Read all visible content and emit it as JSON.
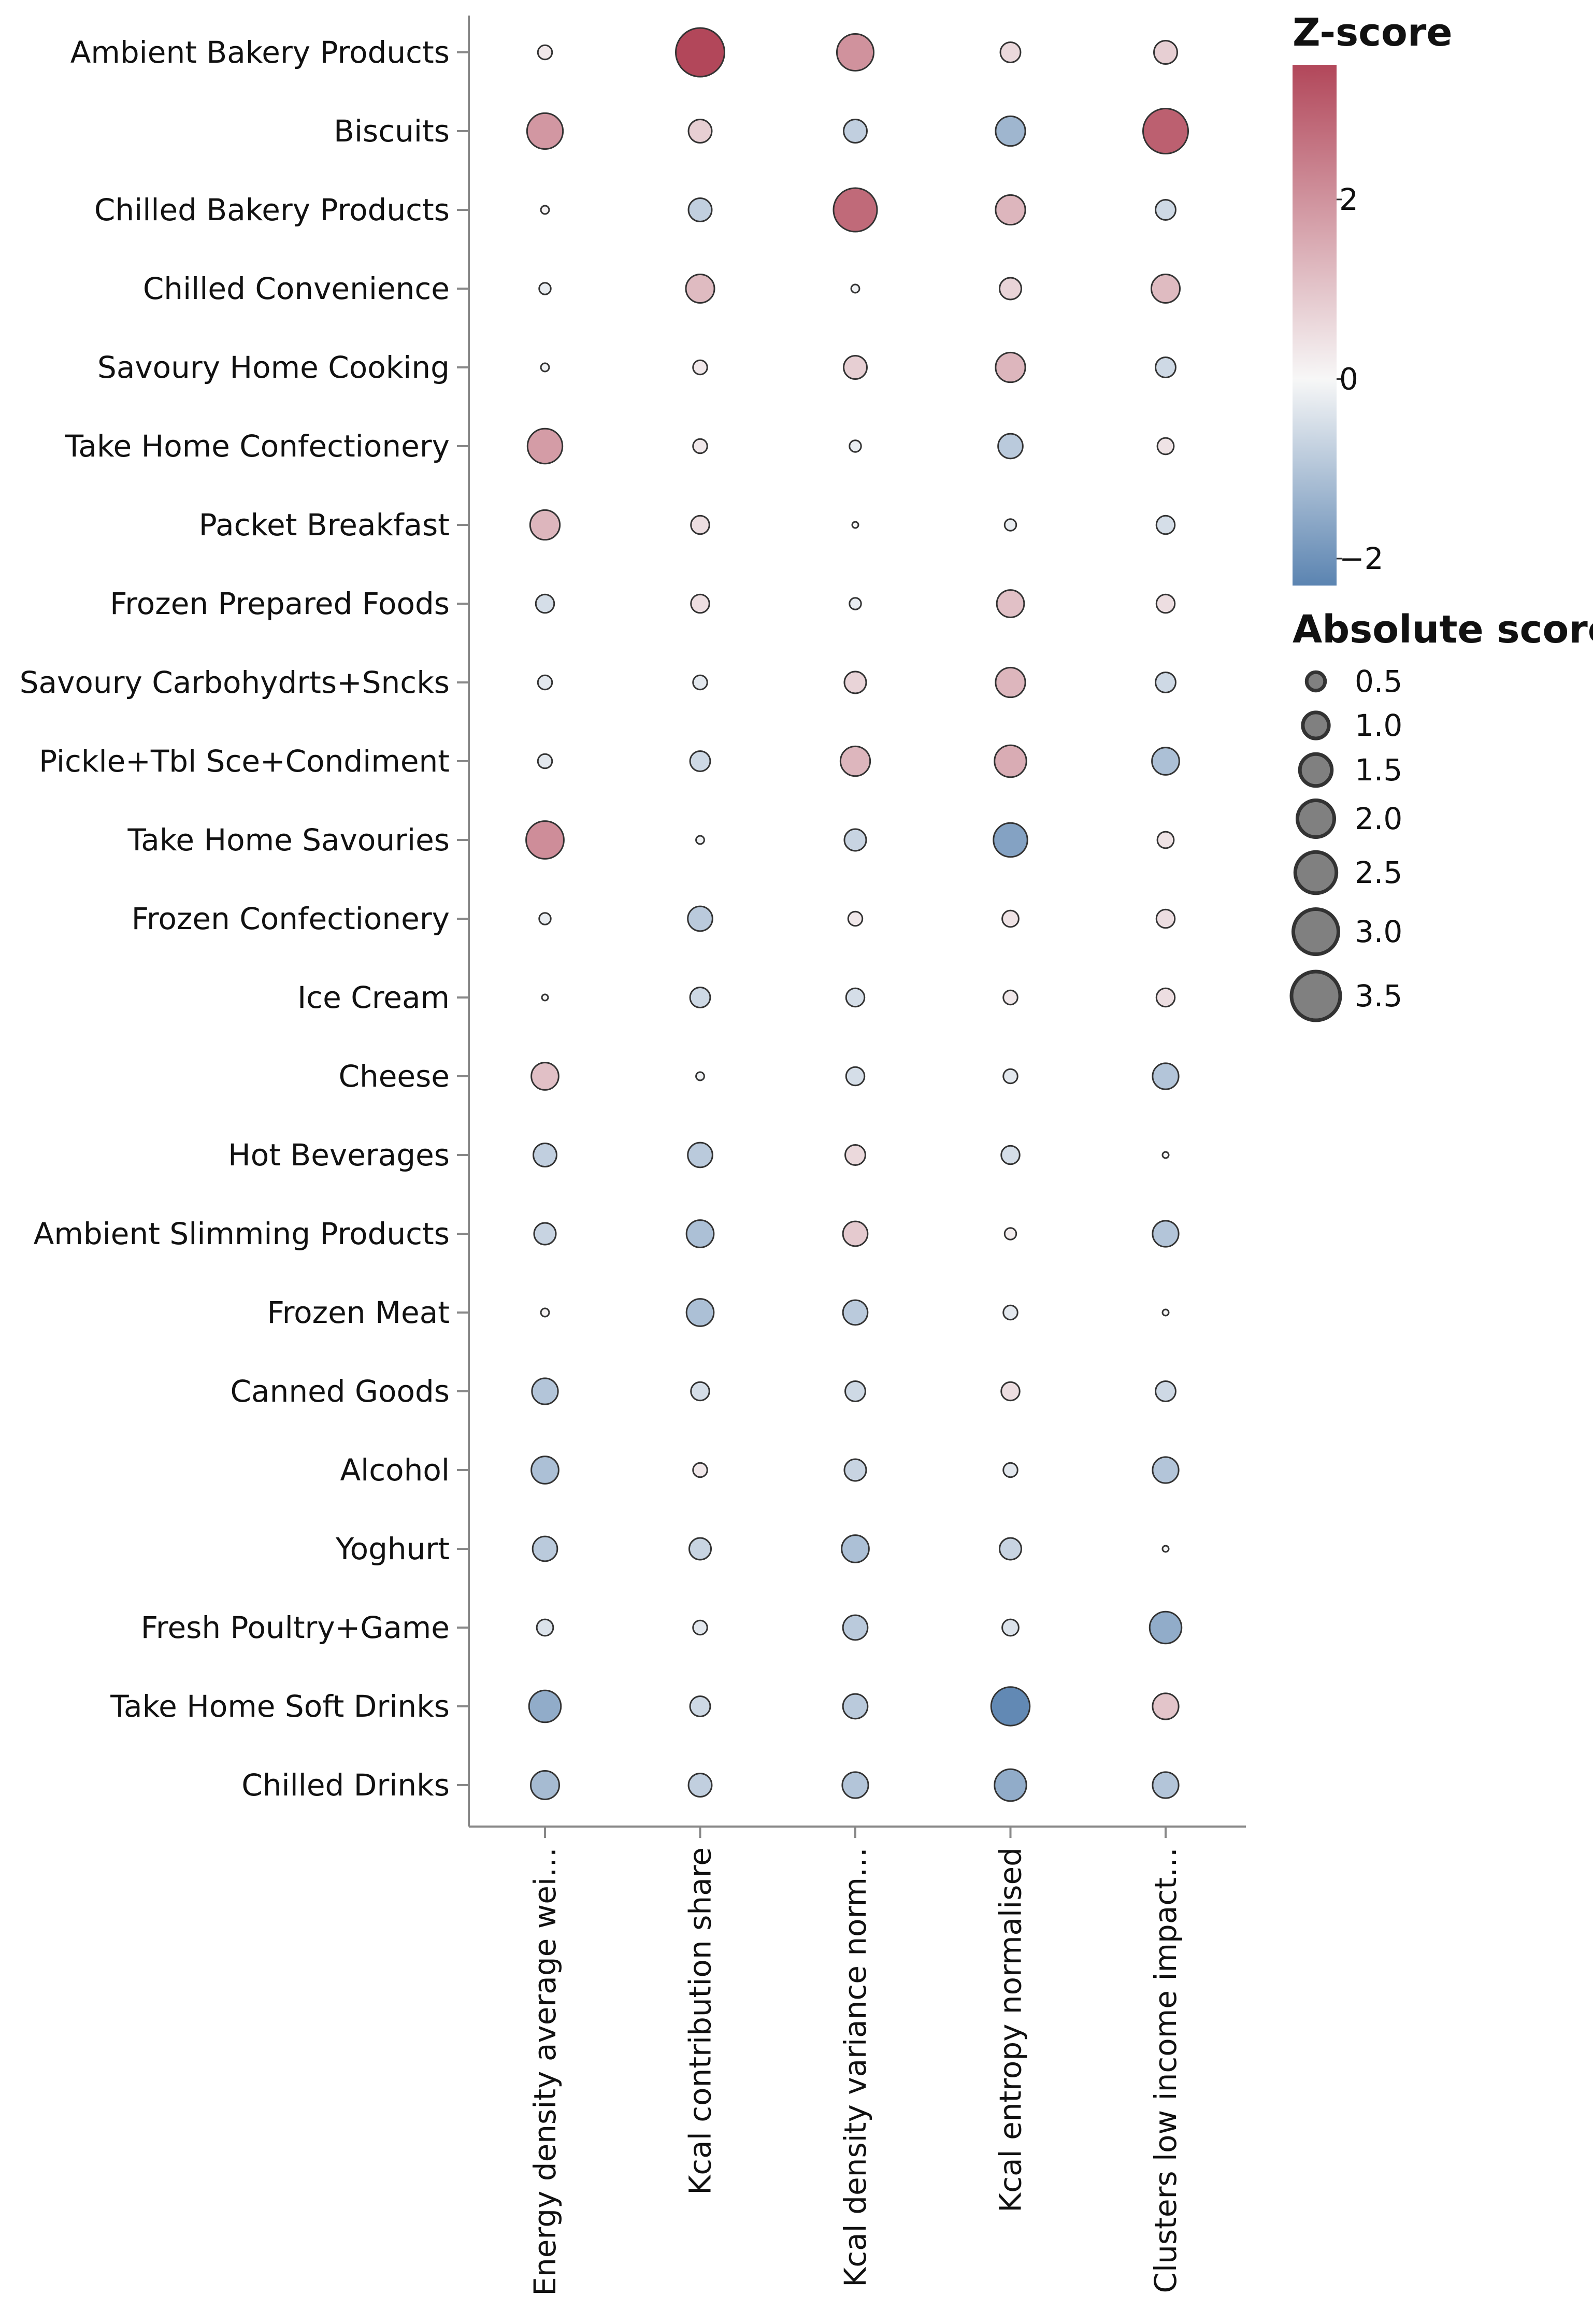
{
  "chart_data": {
    "type": "scatter",
    "encoding": "bubble matrix: color = z-score (diverging red-blue), size = absolute score",
    "rows": [
      "Ambient Bakery Products",
      "Biscuits",
      "Chilled Bakery Products",
      "Chilled Convenience",
      "Savoury Home Cooking",
      "Take Home Confectionery",
      "Packet Breakfast",
      "Frozen Prepared Foods",
      "Savoury Carbohydrts+Sncks",
      "Pickle+Tbl Sce+Condiment",
      "Take Home Savouries",
      "Frozen Confectionery",
      "Ice Cream",
      "Cheese",
      "Hot Beverages",
      "Ambient Slimming Products",
      "Frozen Meat",
      "Canned Goods",
      "Alcohol",
      "Yoghurt",
      "Fresh Poultry+Game",
      "Take Home Soft Drinks",
      "Chilled Drinks"
    ],
    "columns": [
      "Energy density average wei…",
      "Kcal contribution share",
      "Kcal density variance norm…",
      "Kcal entropy normalised",
      "Clusters low income impact…"
    ],
    "z_scores": [
      [
        0.3,
        3.5,
        2.0,
        0.6,
        0.8
      ],
      [
        1.9,
        0.8,
        -0.8,
        -1.3,
        3.0
      ],
      [
        0.1,
        -0.8,
        2.8,
        1.3,
        -0.6
      ],
      [
        -0.2,
        1.2,
        -0.1,
        0.7,
        1.2
      ],
      [
        -0.1,
        0.3,
        0.8,
        1.3,
        -0.6
      ],
      [
        1.8,
        0.3,
        -0.2,
        -0.9,
        0.4
      ],
      [
        1.3,
        0.5,
        0.0,
        -0.2,
        -0.5
      ],
      [
        -0.5,
        0.5,
        -0.2,
        1.1,
        0.5
      ],
      [
        -0.3,
        -0.3,
        0.7,
        1.3,
        -0.6
      ],
      [
        -0.3,
        -0.6,
        1.3,
        1.5,
        -1.1
      ],
      [
        2.1,
        -0.1,
        -0.7,
        -1.7,
        0.4
      ],
      [
        -0.2,
        -0.9,
        0.3,
        0.4,
        0.5
      ],
      [
        0.0,
        -0.6,
        -0.5,
        0.3,
        0.5
      ],
      [
        1.1,
        -0.1,
        -0.5,
        -0.3,
        -1.0
      ],
      [
        -0.8,
        -0.9,
        0.6,
        -0.5,
        0.0
      ],
      [
        -0.7,
        -1.1,
        0.9,
        0.2,
        -1.0
      ],
      [
        0.1,
        -1.1,
        -0.9,
        -0.3,
        0.0
      ],
      [
        -1.0,
        -0.5,
        -0.6,
        0.5,
        -0.6
      ],
      [
        -1.1,
        0.3,
        -0.7,
        -0.3,
        -1.0
      ],
      [
        -0.9,
        -0.7,
        -1.1,
        -0.7,
        0.0
      ],
      [
        -0.4,
        -0.3,
        -0.9,
        -0.4,
        -1.5
      ],
      [
        -1.5,
        -0.6,
        -0.9,
        -2.2,
        1.0
      ],
      [
        -1.2,
        -0.8,
        -1.0,
        -1.5,
        -1.0
      ]
    ],
    "absolute_scores": [
      [
        0.3,
        3.5,
        2.0,
        0.6,
        0.8
      ],
      [
        1.9,
        0.8,
        0.8,
        1.3,
        3.0
      ],
      [
        0.1,
        0.8,
        2.8,
        1.3,
        0.6
      ],
      [
        0.2,
        1.2,
        0.1,
        0.7,
        1.2
      ],
      [
        0.1,
        0.3,
        0.8,
        1.3,
        0.6
      ],
      [
        1.8,
        0.3,
        0.2,
        0.9,
        0.4
      ],
      [
        1.3,
        0.5,
        0.05,
        0.2,
        0.5
      ],
      [
        0.5,
        0.5,
        0.2,
        1.1,
        0.5
      ],
      [
        0.3,
        0.3,
        0.7,
        1.3,
        0.6
      ],
      [
        0.3,
        0.6,
        1.3,
        1.5,
        1.1
      ],
      [
        2.1,
        0.1,
        0.7,
        1.7,
        0.4
      ],
      [
        0.2,
        0.9,
        0.3,
        0.4,
        0.5
      ],
      [
        0.05,
        0.6,
        0.5,
        0.3,
        0.5
      ],
      [
        1.1,
        0.1,
        0.5,
        0.3,
        1.0
      ],
      [
        0.8,
        0.9,
        0.6,
        0.5,
        0.02
      ],
      [
        0.7,
        1.1,
        0.9,
        0.2,
        1.0
      ],
      [
        0.1,
        1.1,
        0.9,
        0.3,
        0.02
      ],
      [
        1.0,
        0.5,
        0.6,
        0.5,
        0.6
      ],
      [
        1.1,
        0.3,
        0.7,
        0.3,
        1.0
      ],
      [
        0.9,
        0.7,
        1.1,
        0.7,
        0.02
      ],
      [
        0.4,
        0.3,
        0.9,
        0.4,
        1.5
      ],
      [
        1.5,
        0.6,
        0.9,
        2.2,
        1.0
      ],
      [
        1.2,
        0.8,
        1.0,
        1.5,
        1.0
      ]
    ],
    "color_legend": {
      "title": "Z-score",
      "domain": [
        -2.3,
        3.5
      ],
      "ticks": [
        2,
        0,
        -2
      ],
      "tick_labels": [
        "2",
        "0",
        "−2"
      ],
      "colors": {
        "low": "#5b84b1",
        "mid": "#f7f7f7",
        "high": "#b2475a"
      }
    },
    "size_legend": {
      "title": "Absolute score",
      "values": [
        0.5,
        1.0,
        1.5,
        2.0,
        2.5,
        3.0,
        3.5
      ],
      "labels": [
        "0.5",
        "1.0",
        "1.5",
        "2.0",
        "2.5",
        "3.0",
        "3.5"
      ]
    },
    "legend_placement": "right",
    "grid": false
  }
}
